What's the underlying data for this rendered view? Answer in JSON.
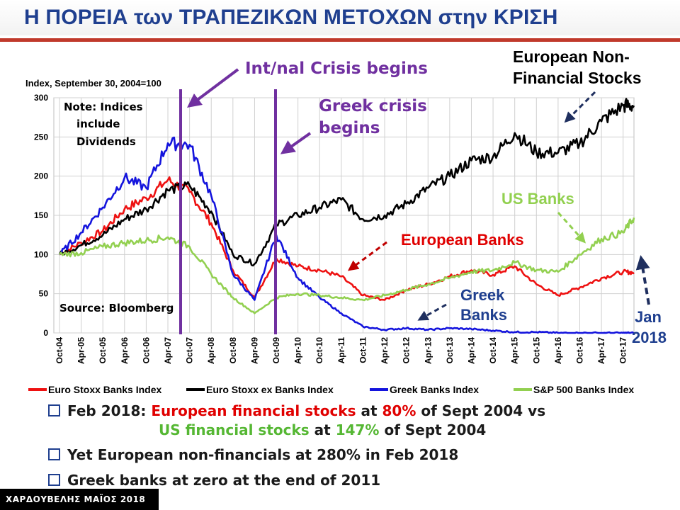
{
  "header": {
    "title": "Η ΠΟΡΕΙΑ των ΤΡΑΠΕΖΙΚΩΝ ΜΕΤΟΧΩΝ στην ΚΡΙΣΗ"
  },
  "chart_data": {
    "type": "line",
    "ylabel": "Index, September 30, 2004=100",
    "ylim": [
      0,
      300
    ],
    "yticks": [
      0,
      50,
      100,
      150,
      200,
      250,
      300
    ],
    "grid": true,
    "legend_position": "bottom",
    "x": [
      "Oct-04",
      "Apr-05",
      "Oct-05",
      "Apr-06",
      "Oct-06",
      "Apr-07",
      "Oct-07",
      "Apr-08",
      "Oct-08",
      "Apr-09",
      "Oct-09",
      "Apr-10",
      "Oct-10",
      "Apr-11",
      "Oct-11",
      "Apr-12",
      "Oct-12",
      "Apr-13",
      "Oct-13",
      "Apr-14",
      "Oct-14",
      "Apr-15",
      "Oct-15",
      "Apr-16",
      "Oct-16",
      "Apr-17",
      "Oct-17",
      "Jan-18"
    ],
    "series": [
      {
        "name": "Euro Stoxx Banks Index",
        "color": "#ee1111",
        "values": [
          100,
          115,
          130,
          158,
          172,
          195,
          180,
          140,
          80,
          45,
          95,
          85,
          80,
          72,
          48,
          42,
          55,
          62,
          72,
          80,
          74,
          85,
          62,
          48,
          58,
          70,
          78,
          77
        ]
      },
      {
        "name": "Euro Stoxx ex Banks Index",
        "color": "#000000",
        "values": [
          100,
          112,
          125,
          145,
          158,
          182,
          188,
          155,
          100,
          88,
          138,
          150,
          160,
          170,
          145,
          150,
          165,
          185,
          200,
          220,
          225,
          255,
          230,
          230,
          242,
          270,
          290,
          290
        ]
      },
      {
        "name": "Greek Banks Index",
        "color": "#1414dd",
        "values": [
          100,
          128,
          160,
          198,
          185,
          242,
          240,
          175,
          75,
          42,
          125,
          70,
          45,
          25,
          8,
          4,
          6,
          4,
          6,
          5,
          3,
          1,
          1,
          0,
          0,
          0,
          0,
          0
        ]
      },
      {
        "name": "S&P 500 Banks Index",
        "color": "#92d050",
        "values": [
          100,
          102,
          110,
          115,
          118,
          122,
          110,
          75,
          45,
          25,
          45,
          50,
          48,
          45,
          42,
          48,
          55,
          62,
          70,
          78,
          80,
          90,
          80,
          78,
          100,
          120,
          128,
          147
        ]
      }
    ],
    "annotations": {
      "source": "Source: Bloomberg",
      "note": [
        "Note:  Indices",
        "include",
        "Dividends"
      ],
      "intl_crisis": "Int/nal Crisis begins",
      "greek_crisis": [
        "Greek crisis",
        "begins"
      ],
      "eu_nonfin": [
        "European  Non-",
        "Financial Stocks"
      ],
      "us_banks": "US Banks",
      "eu_banks": "European Banks",
      "greek_banks": [
        "Greek",
        "Banks"
      ],
      "jan": [
        "Jan",
        "2018"
      ]
    },
    "crisis_lines_at": [
      "Jul-07",
      "Oct-09"
    ]
  },
  "bullets": {
    "b1": {
      "l1_a": "Feb 2018: ",
      "l1_b": "European financial stocks",
      "l1_c": " at ",
      "l1_d": "80%",
      "l1_e": " of Sept 2004 vs",
      "l2_a": "US financial stocks",
      "l2_b": " at ",
      "l2_c": "147%",
      "l2_d": " of Sept 2004"
    },
    "b2": "Yet European non-financials at 280% in Feb 2018",
    "b3": "Greek banks at zero at the end of 2011"
  },
  "footer": "ΧΑΡΔΟΥΒΕΛΗΣ ΜΑΪΟΣ 2018"
}
